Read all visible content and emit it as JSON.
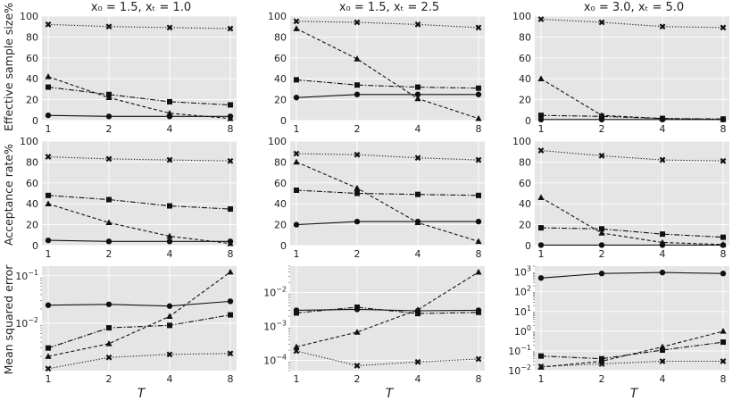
{
  "figure": {
    "column_titles": [
      "x₀ = 1.5,   xₜ = 1.0",
      "x₀ = 1.5,   xₜ = 2.5",
      "x₀ = 3.0,   xₜ = 5.0"
    ],
    "row_ylabels": [
      "Effective sample size%",
      "Acceptance rate%",
      "Mean squared error"
    ],
    "xlabel": "T"
  },
  "chart_data": [
    {
      "type": "line",
      "row": 0,
      "col": 0,
      "scale": "linear",
      "ylim": [
        0,
        100
      ],
      "ytick_labels": [
        "0",
        "20",
        "40",
        "60",
        "80",
        "100"
      ],
      "yticks": [
        0,
        20,
        40,
        60,
        80,
        100
      ],
      "categories": [
        "1",
        "2",
        "4",
        "8"
      ],
      "series": [
        {
          "name": "circle-solid",
          "marker": "circle",
          "dash": "solid",
          "values": [
            5,
            4,
            4,
            4
          ]
        },
        {
          "name": "square-dashdot",
          "marker": "square",
          "dash": "dashdot",
          "values": [
            32,
            25,
            18,
            15
          ]
        },
        {
          "name": "triangle-dashed",
          "marker": "triangle",
          "dash": "dashed",
          "values": [
            42,
            22,
            7,
            2
          ]
        },
        {
          "name": "x-dotted",
          "marker": "x",
          "dash": "dotted",
          "values": [
            92,
            90,
            89,
            88
          ]
        }
      ]
    },
    {
      "type": "line",
      "row": 0,
      "col": 1,
      "scale": "linear",
      "ylim": [
        0,
        100
      ],
      "ytick_labels": [
        "0",
        "20",
        "40",
        "60",
        "80",
        "100"
      ],
      "yticks": [
        0,
        20,
        40,
        60,
        80,
        100
      ],
      "categories": [
        "1",
        "2",
        "4",
        "8"
      ],
      "series": [
        {
          "name": "circle-solid",
          "marker": "circle",
          "dash": "solid",
          "values": [
            22,
            25,
            25,
            25
          ]
        },
        {
          "name": "square-dashdot",
          "marker": "square",
          "dash": "dashdot",
          "values": [
            39,
            34,
            32,
            31
          ]
        },
        {
          "name": "triangle-dashed",
          "marker": "triangle",
          "dash": "dashed",
          "values": [
            88,
            59,
            21,
            2
          ]
        },
        {
          "name": "x-dotted",
          "marker": "x",
          "dash": "dotted",
          "values": [
            95,
            94,
            92,
            89
          ]
        }
      ]
    },
    {
      "type": "line",
      "row": 0,
      "col": 2,
      "scale": "linear",
      "ylim": [
        0,
        100
      ],
      "ytick_labels": [
        "0",
        "20",
        "40",
        "60",
        "80",
        "100"
      ],
      "yticks": [
        0,
        20,
        40,
        60,
        80,
        100
      ],
      "categories": [
        "1",
        "2",
        "4",
        "8"
      ],
      "series": [
        {
          "name": "circle-solid",
          "marker": "circle",
          "dash": "solid",
          "values": [
            1,
            1,
            1,
            1
          ]
        },
        {
          "name": "square-dashdot",
          "marker": "square",
          "dash": "dashdot",
          "values": [
            5,
            4,
            2,
            1.5
          ]
        },
        {
          "name": "triangle-dashed",
          "marker": "triangle",
          "dash": "dashed",
          "values": [
            40,
            5,
            2,
            1
          ]
        },
        {
          "name": "x-dotted",
          "marker": "x",
          "dash": "dotted",
          "values": [
            97,
            94,
            90,
            89
          ]
        }
      ]
    },
    {
      "type": "line",
      "row": 1,
      "col": 0,
      "scale": "linear",
      "ylim": [
        0,
        100
      ],
      "ytick_labels": [
        "0",
        "20",
        "40",
        "60",
        "80",
        "100"
      ],
      "yticks": [
        0,
        20,
        40,
        60,
        80,
        100
      ],
      "categories": [
        "1",
        "2",
        "4",
        "8"
      ],
      "series": [
        {
          "name": "circle-solid",
          "marker": "circle",
          "dash": "solid",
          "values": [
            5,
            4,
            4,
            4
          ]
        },
        {
          "name": "square-dashdot",
          "marker": "square",
          "dash": "dashdot",
          "values": [
            48,
            44,
            38,
            35
          ]
        },
        {
          "name": "triangle-dashed",
          "marker": "triangle",
          "dash": "dashed",
          "values": [
            40,
            22,
            9,
            2
          ]
        },
        {
          "name": "x-dotted",
          "marker": "x",
          "dash": "dotted",
          "values": [
            85,
            83,
            82,
            81
          ]
        }
      ]
    },
    {
      "type": "line",
      "row": 1,
      "col": 1,
      "scale": "linear",
      "ylim": [
        0,
        100
      ],
      "ytick_labels": [
        "0",
        "20",
        "40",
        "60",
        "80",
        "100"
      ],
      "yticks": [
        0,
        20,
        40,
        60,
        80,
        100
      ],
      "categories": [
        "1",
        "2",
        "4",
        "8"
      ],
      "series": [
        {
          "name": "circle-solid",
          "marker": "circle",
          "dash": "solid",
          "values": [
            20,
            23,
            23,
            23
          ]
        },
        {
          "name": "square-dashdot",
          "marker": "square",
          "dash": "dashdot",
          "values": [
            53,
            50,
            49,
            48
          ]
        },
        {
          "name": "triangle-dashed",
          "marker": "triangle",
          "dash": "dashed",
          "values": [
            80,
            55,
            22,
            4
          ]
        },
        {
          "name": "x-dotted",
          "marker": "x",
          "dash": "dotted",
          "values": [
            88,
            87,
            84,
            82
          ]
        }
      ]
    },
    {
      "type": "line",
      "row": 1,
      "col": 2,
      "scale": "linear",
      "ylim": [
        0,
        100
      ],
      "ytick_labels": [
        "0",
        "20",
        "40",
        "60",
        "80",
        "100"
      ],
      "yticks": [
        0,
        20,
        40,
        60,
        80,
        100
      ],
      "categories": [
        "1",
        "2",
        "4",
        "8"
      ],
      "series": [
        {
          "name": "circle-solid",
          "marker": "circle",
          "dash": "solid",
          "values": [
            0.5,
            0.5,
            0.5,
            0.5
          ]
        },
        {
          "name": "square-dashdot",
          "marker": "square",
          "dash": "dashdot",
          "values": [
            17,
            16,
            11,
            8
          ]
        },
        {
          "name": "triangle-dashed",
          "marker": "triangle",
          "dash": "dashed",
          "values": [
            46,
            12,
            3,
            1
          ]
        },
        {
          "name": "x-dotted",
          "marker": "x",
          "dash": "dotted",
          "values": [
            91,
            86,
            82,
            81
          ]
        }
      ]
    },
    {
      "type": "line",
      "row": 2,
      "col": 0,
      "scale": "log",
      "ylim": [
        0.001,
        0.16
      ],
      "yticks_major": [
        0.01,
        0.1
      ],
      "ytick_labels": [
        [
          "10",
          "−2"
        ],
        [
          "10",
          "−1"
        ]
      ],
      "categories": [
        "1",
        "2",
        "4",
        "8"
      ],
      "series": [
        {
          "name": "circle-solid",
          "marker": "circle",
          "dash": "solid",
          "values": [
            0.024,
            0.025,
            0.023,
            0.029
          ]
        },
        {
          "name": "square-dashdot",
          "marker": "square",
          "dash": "dashdot",
          "values": [
            0.003,
            0.008,
            0.009,
            0.015
          ]
        },
        {
          "name": "triangle-dashed",
          "marker": "triangle",
          "dash": "dashed",
          "values": [
            0.002,
            0.0037,
            0.014,
            0.12
          ]
        },
        {
          "name": "x-dotted",
          "marker": "x",
          "dash": "dotted",
          "values": [
            0.0011,
            0.0019,
            0.0022,
            0.0023
          ]
        }
      ]
    },
    {
      "type": "line",
      "row": 2,
      "col": 1,
      "scale": "log",
      "ylim": [
        5e-05,
        0.06
      ],
      "yticks_major": [
        0.0001,
        0.001,
        0.01
      ],
      "ytick_labels": [
        [
          "10",
          "−4"
        ],
        [
          "10",
          "−3"
        ],
        [
          "10",
          "−2"
        ]
      ],
      "categories": [
        "1",
        "2",
        "4",
        "8"
      ],
      "series": [
        {
          "name": "circle-solid",
          "marker": "circle",
          "dash": "solid",
          "values": [
            0.003,
            0.0032,
            0.0029,
            0.003
          ]
        },
        {
          "name": "square-dashdot",
          "marker": "square",
          "dash": "dashdot",
          "values": [
            0.0025,
            0.0037,
            0.0024,
            0.0026
          ]
        },
        {
          "name": "triangle-dashed",
          "marker": "triangle",
          "dash": "dashed",
          "values": [
            0.00025,
            0.00068,
            0.0031,
            0.04
          ]
        },
        {
          "name": "x-dotted",
          "marker": "x",
          "dash": "dotted",
          "values": [
            0.00019,
            7e-05,
            9e-05,
            0.00011
          ]
        }
      ]
    },
    {
      "type": "line",
      "row": 2,
      "col": 2,
      "scale": "log",
      "ylim": [
        0.01,
        2000
      ],
      "yticks_major": [
        0.01,
        0.1,
        1,
        10,
        100,
        1000
      ],
      "ytick_labels": [
        [
          "10",
          "−2"
        ],
        [
          "10",
          "−1"
        ],
        [
          "10",
          "0"
        ],
        [
          "10",
          "1"
        ],
        [
          "10",
          "2"
        ],
        [
          "10",
          "3"
        ]
      ],
      "categories": [
        "1",
        "2",
        "4",
        "8"
      ],
      "series": [
        {
          "name": "circle-solid",
          "marker": "circle",
          "dash": "solid",
          "values": [
            500,
            850,
            950,
            850
          ]
        },
        {
          "name": "square-dashdot",
          "marker": "square",
          "dash": "dashdot",
          "values": [
            0.055,
            0.04,
            0.11,
            0.28
          ]
        },
        {
          "name": "triangle-dashed",
          "marker": "triangle",
          "dash": "dashed",
          "values": [
            0.015,
            0.03,
            0.16,
            1.0
          ]
        },
        {
          "name": "x-dotted",
          "marker": "x",
          "dash": "dotted",
          "values": [
            0.016,
            0.022,
            0.03,
            0.03
          ]
        }
      ]
    }
  ]
}
